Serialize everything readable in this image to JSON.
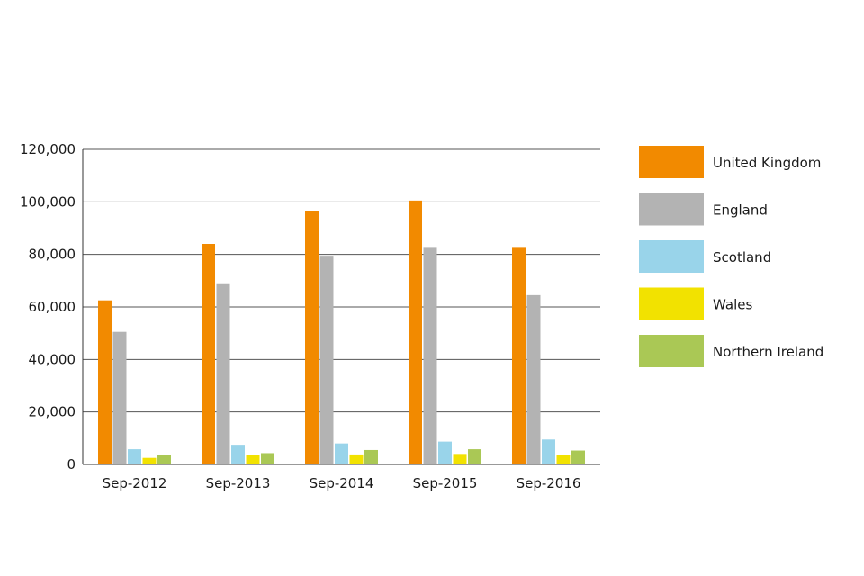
{
  "chart_data": {
    "type": "bar",
    "categories": [
      "Sep-2012",
      "Sep-2013",
      "Sep-2014",
      "Sep-2015",
      "Sep-2016"
    ],
    "series": [
      {
        "name": "United Kingdom",
        "color": "#f28a00",
        "values": [
          62500,
          84000,
          96500,
          100500,
          82500
        ]
      },
      {
        "name": "England",
        "color": "#b3b3b3",
        "values": [
          50500,
          69000,
          79500,
          82500,
          64500
        ]
      },
      {
        "name": "Scotland",
        "color": "#99d4ea",
        "values": [
          5800,
          7500,
          8000,
          8700,
          9500
        ]
      },
      {
        "name": "Wales",
        "color": "#f2e200",
        "values": [
          2500,
          3500,
          3800,
          4000,
          3500
        ]
      },
      {
        "name": "Northern Ireland",
        "color": "#aac855",
        "values": [
          3500,
          4300,
          5500,
          5800,
          5300
        ]
      }
    ],
    "y_ticks": [
      "0",
      "20,000",
      "40,000",
      "60,000",
      "80,000",
      "100,000",
      "120,000"
    ],
    "ylim": [
      0,
      120000
    ],
    "grid": true,
    "legend_position": "right"
  }
}
